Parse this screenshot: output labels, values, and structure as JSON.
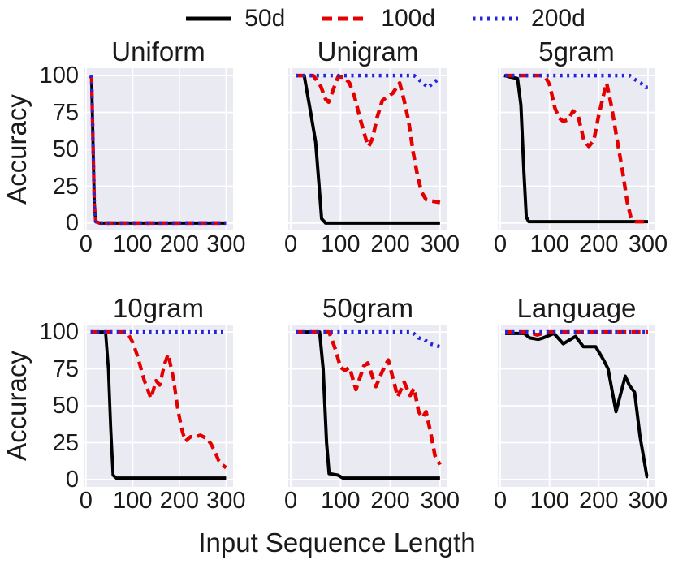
{
  "legend": [
    {
      "label": "50d",
      "color": "#000000",
      "style": "solid",
      "width": 4
    },
    {
      "label": "100d",
      "color": "#e50000",
      "style": "dashed",
      "width": 4.5
    },
    {
      "label": "200d",
      "color": "#2424dd",
      "style": "dotted",
      "width": 4.5
    }
  ],
  "axes": {
    "ylabel": "Accuracy",
    "xlabel": "Input Sequence Length",
    "yticks": [
      100,
      75,
      50,
      25,
      0
    ],
    "xticks": [
      0,
      100,
      200,
      300
    ],
    "xlim": [
      -5,
      315
    ],
    "ylim": [
      -5,
      105
    ],
    "grid": true,
    "background": "#eaeaf2",
    "gridcolor": "#ffffff"
  },
  "chart_data": [
    {
      "type": "line",
      "title": "Uniform",
      "series": [
        {
          "name": "50d",
          "points": [
            [
              10,
              100
            ],
            [
              12,
              98
            ],
            [
              15,
              55
            ],
            [
              18,
              12
            ],
            [
              21,
              1
            ],
            [
              30,
              0
            ],
            [
              300,
              0
            ]
          ]
        },
        {
          "name": "100d",
          "points": [
            [
              10,
              100
            ],
            [
              12,
              98
            ],
            [
              15,
              55
            ],
            [
              18,
              12
            ],
            [
              21,
              1
            ],
            [
              30,
              0
            ],
            [
              300,
              0
            ]
          ]
        },
        {
          "name": "200d",
          "points": [
            [
              10,
              100
            ],
            [
              12,
              98
            ],
            [
              15,
              55
            ],
            [
              18,
              12
            ],
            [
              21,
              1
            ],
            [
              30,
              0
            ],
            [
              300,
              0
            ]
          ]
        }
      ]
    },
    {
      "type": "line",
      "title": "Unigram",
      "series": [
        {
          "name": "50d",
          "points": [
            [
              10,
              100
            ],
            [
              27,
              100
            ],
            [
              40,
              75
            ],
            [
              50,
              55
            ],
            [
              57,
              25
            ],
            [
              62,
              3
            ],
            [
              70,
              0
            ],
            [
              300,
              0
            ]
          ]
        },
        {
          "name": "100d",
          "points": [
            [
              10,
              100
            ],
            [
              45,
              100
            ],
            [
              60,
              93
            ],
            [
              70,
              84
            ],
            [
              76,
              82
            ],
            [
              85,
              90
            ],
            [
              95,
              99
            ],
            [
              107,
              99
            ],
            [
              118,
              95
            ],
            [
              128,
              86
            ],
            [
              140,
              70
            ],
            [
              151,
              57
            ],
            [
              157,
              52
            ],
            [
              165,
              58
            ],
            [
              173,
              71
            ],
            [
              184,
              83
            ],
            [
              195,
              86
            ],
            [
              205,
              88
            ],
            [
              213,
              92
            ],
            [
              219,
              95
            ],
            [
              228,
              83
            ],
            [
              237,
              69
            ],
            [
              246,
              48
            ],
            [
              255,
              32
            ],
            [
              263,
              21
            ],
            [
              272,
              16
            ],
            [
              283,
              15
            ],
            [
              300,
              14
            ]
          ]
        },
        {
          "name": "200d",
          "points": [
            [
              10,
              100
            ],
            [
              248,
              100
            ],
            [
              262,
              96
            ],
            [
              276,
              92
            ],
            [
              290,
              96
            ],
            [
              300,
              98
            ]
          ]
        }
      ]
    },
    {
      "type": "line",
      "title": "5gram",
      "series": [
        {
          "name": "50d",
          "points": [
            [
              8,
              100
            ],
            [
              20,
              99
            ],
            [
              35,
              98
            ],
            [
              42,
              80
            ],
            [
              48,
              35
            ],
            [
              53,
              4
            ],
            [
              58,
              1
            ],
            [
              300,
              1
            ]
          ]
        },
        {
          "name": "100d",
          "points": [
            [
              10,
              100
            ],
            [
              90,
              100
            ],
            [
              100,
              94
            ],
            [
              111,
              78
            ],
            [
              120,
              71
            ],
            [
              128,
              69
            ],
            [
              138,
              70
            ],
            [
              148,
              76
            ],
            [
              158,
              73
            ],
            [
              170,
              56
            ],
            [
              180,
              52
            ],
            [
              190,
              56
            ],
            [
              200,
              73
            ],
            [
              210,
              87
            ],
            [
              216,
              95
            ],
            [
              226,
              79
            ],
            [
              237,
              57
            ],
            [
              248,
              36
            ],
            [
              258,
              14
            ],
            [
              266,
              3
            ],
            [
              275,
              1
            ],
            [
              300,
              1
            ]
          ]
        },
        {
          "name": "200d",
          "points": [
            [
              10,
              100
            ],
            [
              263,
              100
            ],
            [
              275,
              97
            ],
            [
              285,
              95
            ],
            [
              295,
              92
            ],
            [
              300,
              92
            ]
          ]
        }
      ]
    },
    {
      "type": "line",
      "title": "10gram",
      "series": [
        {
          "name": "50d",
          "points": [
            [
              10,
              100
            ],
            [
              42,
              100
            ],
            [
              48,
              75
            ],
            [
              53,
              35
            ],
            [
              58,
              3
            ],
            [
              65,
              1
            ],
            [
              300,
              1
            ]
          ]
        },
        {
          "name": "100d",
          "points": [
            [
              10,
              100
            ],
            [
              88,
              100
            ],
            [
              100,
              93
            ],
            [
              110,
              84
            ],
            [
              125,
              67
            ],
            [
              139,
              55
            ],
            [
              150,
              67
            ],
            [
              158,
              64
            ],
            [
              168,
              78
            ],
            [
              176,
              85
            ],
            [
              187,
              69
            ],
            [
              197,
              47
            ],
            [
              206,
              33
            ],
            [
              213,
              26
            ],
            [
              224,
              29
            ],
            [
              235,
              29
            ],
            [
              245,
              30
            ],
            [
              258,
              28
            ],
            [
              268,
              24
            ],
            [
              276,
              19
            ],
            [
              284,
              13
            ],
            [
              292,
              10
            ],
            [
              300,
              8
            ]
          ]
        },
        {
          "name": "200d",
          "points": [
            [
              10,
              100
            ],
            [
              300,
              100
            ]
          ]
        }
      ]
    },
    {
      "type": "line",
      "title": "50gram",
      "series": [
        {
          "name": "50d",
          "points": [
            [
              10,
              100
            ],
            [
              58,
              100
            ],
            [
              65,
              75
            ],
            [
              72,
              25
            ],
            [
              77,
              4
            ],
            [
              95,
              3
            ],
            [
              105,
              1
            ],
            [
              300,
              1
            ]
          ]
        },
        {
          "name": "100d",
          "points": [
            [
              10,
              100
            ],
            [
              77,
              100
            ],
            [
              90,
              88
            ],
            [
              100,
              76
            ],
            [
              109,
              74
            ],
            [
              118,
              76
            ],
            [
              131,
              61
            ],
            [
              147,
              77
            ],
            [
              155,
              79
            ],
            [
              171,
              63
            ],
            [
              185,
              74
            ],
            [
              196,
              81
            ],
            [
              215,
              56
            ],
            [
              228,
              66
            ],
            [
              240,
              57
            ],
            [
              248,
              62
            ],
            [
              257,
              46
            ],
            [
              265,
              42
            ],
            [
              272,
              46
            ],
            [
              281,
              32
            ],
            [
              290,
              16
            ],
            [
              300,
              10
            ]
          ]
        },
        {
          "name": "200d",
          "points": [
            [
              10,
              100
            ],
            [
              244,
              100
            ],
            [
              257,
              96
            ],
            [
              268,
              95
            ],
            [
              280,
              92
            ],
            [
              300,
              90
            ]
          ]
        }
      ]
    },
    {
      "type": "line",
      "title": "Language",
      "series": [
        {
          "name": "50d",
          "points": [
            [
              10,
              99
            ],
            [
              49,
              99
            ],
            [
              60,
              96
            ],
            [
              77,
              95
            ],
            [
              87,
              96
            ],
            [
              109,
              99
            ],
            [
              128,
              92
            ],
            [
              153,
              97
            ],
            [
              169,
              90
            ],
            [
              194,
              90
            ],
            [
              210,
              81
            ],
            [
              219,
              75
            ],
            [
              235,
              46
            ],
            [
              254,
              70
            ],
            [
              262,
              64
            ],
            [
              273,
              59
            ],
            [
              284,
              29
            ],
            [
              298,
              2
            ],
            [
              300,
              2
            ]
          ]
        },
        {
          "name": "100d",
          "points": [
            [
              10,
              100
            ],
            [
              55,
              100
            ],
            [
              75,
              98
            ],
            [
              95,
              100
            ],
            [
              300,
              100
            ]
          ]
        },
        {
          "name": "200d",
          "points": [
            [
              10,
              100
            ],
            [
              300,
              100
            ]
          ]
        }
      ]
    }
  ]
}
